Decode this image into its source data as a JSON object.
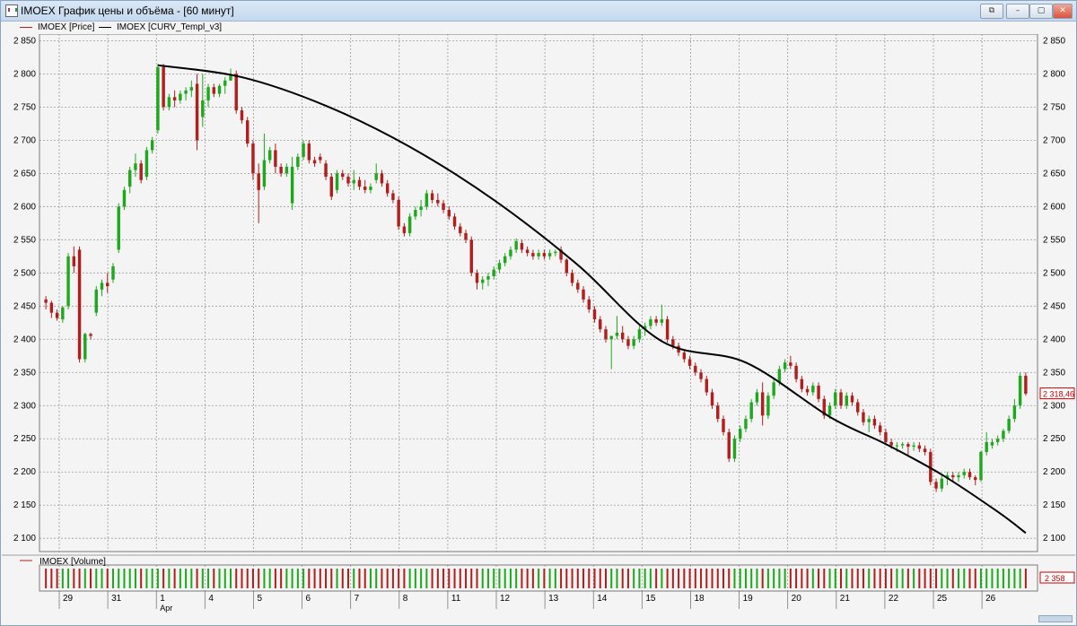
{
  "window": {
    "title": "IMOEX График цены и объёма - [60 минут]",
    "controls": [
      "⧉",
      "–",
      "▢",
      "✕"
    ]
  },
  "legend": {
    "price": "IMOEX [Price]",
    "curve": "IMOEX [CURV_Templ_v3]",
    "volume": "IMOEX [Volume]"
  },
  "colors": {
    "up": "#1ea81e",
    "down": "#b01e1e",
    "curve": "#000000",
    "grid": "#9a9a9a",
    "background": "#f4f4f4"
  },
  "chart_data": [
    {
      "type": "candlestick",
      "title": "IMOEX [Price]",
      "ylim": [
        2080,
        2860
      ],
      "y_ticks": [
        2850,
        2800,
        2750,
        2700,
        2650,
        2600,
        2550,
        2500,
        2450,
        2400,
        2350,
        2300,
        2250,
        2200,
        2150,
        2100
      ],
      "y_tick_labels": [
        "2 850",
        "2 800",
        "2 750",
        "2 700",
        "2 650",
        "2 600",
        "2 550",
        "2 500",
        "2 450",
        "2 400",
        "2 350",
        "2 300",
        "2 250",
        "2 200",
        "2 150",
        "2 100"
      ],
      "last_price_label": "2 318,46",
      "last_price": 2318.46,
      "x_day_labels": [
        "29",
        "31",
        "1",
        "4",
        "5",
        "6",
        "7",
        "8",
        "11",
        "12",
        "13",
        "14",
        "15",
        "18",
        "19",
        "20",
        "21",
        "22",
        "25",
        "26"
      ],
      "x_sub_label": "Apr",
      "candles": [
        [
          2460,
          2465,
          2445,
          2455
        ],
        [
          2455,
          2458,
          2432,
          2440
        ],
        [
          2440,
          2445,
          2428,
          2432
        ],
        [
          2430,
          2450,
          2425,
          2448
        ],
        [
          2450,
          2530,
          2445,
          2525
        ],
        [
          2525,
          2540,
          2500,
          2510
        ],
        [
          2535,
          2540,
          2365,
          2370
        ],
        [
          2370,
          2410,
          2365,
          2408
        ],
        [
          2408,
          2410,
          2400,
          2405
        ],
        [
          2440,
          2480,
          2435,
          2475
        ],
        [
          2475,
          2490,
          2465,
          2485
        ],
        [
          2485,
          2500,
          2470,
          2480
        ],
        [
          2490,
          2515,
          2485,
          2510
        ],
        [
          2535,
          2605,
          2530,
          2600
        ],
        [
          2600,
          2630,
          2595,
          2625
        ],
        [
          2630,
          2660,
          2620,
          2655
        ],
        [
          2655,
          2680,
          2645,
          2665
        ],
        [
          2665,
          2670,
          2635,
          2640
        ],
        [
          2645,
          2690,
          2640,
          2685
        ],
        [
          2685,
          2705,
          2680,
          2700
        ],
        [
          2715,
          2815,
          2710,
          2810
        ],
        [
          2810,
          2815,
          2745,
          2750
        ],
        [
          2750,
          2770,
          2745,
          2765
        ],
        [
          2765,
          2775,
          2750,
          2760
        ],
        [
          2760,
          2775,
          2755,
          2770
        ],
        [
          2770,
          2780,
          2760,
          2775
        ],
        [
          2775,
          2790,
          2765,
          2780
        ],
        [
          2785,
          2800,
          2685,
          2700
        ],
        [
          2735,
          2800,
          2720,
          2760
        ],
        [
          2760,
          2785,
          2750,
          2780
        ],
        [
          2780,
          2785,
          2765,
          2770
        ],
        [
          2770,
          2785,
          2765,
          2782
        ],
        [
          2782,
          2795,
          2770,
          2790
        ],
        [
          2790,
          2808,
          2790,
          2800
        ],
        [
          2800,
          2805,
          2740,
          2745
        ],
        [
          2745,
          2750,
          2725,
          2730
        ],
        [
          2730,
          2735,
          2690,
          2695
        ],
        [
          2695,
          2700,
          2640,
          2650
        ],
        [
          2650,
          2665,
          2575,
          2625
        ],
        [
          2630,
          2710,
          2625,
          2670
        ],
        [
          2670,
          2690,
          2665,
          2685
        ],
        [
          2685,
          2695,
          2650,
          2660
        ],
        [
          2660,
          2665,
          2645,
          2650
        ],
        [
          2650,
          2665,
          2645,
          2660
        ],
        [
          2605,
          2675,
          2595,
          2660
        ],
        [
          2660,
          2680,
          2655,
          2675
        ],
        [
          2675,
          2700,
          2670,
          2695
        ],
        [
          2695,
          2700,
          2665,
          2670
        ],
        [
          2670,
          2675,
          2660,
          2665
        ],
        [
          2675,
          2680,
          2665,
          2670
        ],
        [
          2665,
          2670,
          2640,
          2645
        ],
        [
          2645,
          2650,
          2610,
          2615
        ],
        [
          2625,
          2655,
          2620,
          2650
        ],
        [
          2650,
          2655,
          2640,
          2645
        ],
        [
          2645,
          2650,
          2630,
          2635
        ],
        [
          2635,
          2655,
          2625,
          2640
        ],
        [
          2640,
          2645,
          2625,
          2630
        ],
        [
          2630,
          2640,
          2620,
          2625
        ],
        [
          2625,
          2635,
          2620,
          2630
        ],
        [
          2640,
          2665,
          2635,
          2650
        ],
        [
          2650,
          2655,
          2630,
          2635
        ],
        [
          2635,
          2640,
          2615,
          2620
        ],
        [
          2620,
          2625,
          2605,
          2610
        ],
        [
          2610,
          2615,
          2565,
          2570
        ],
        [
          2570,
          2575,
          2555,
          2560
        ],
        [
          2560,
          2590,
          2555,
          2585
        ],
        [
          2585,
          2600,
          2580,
          2595
        ],
        [
          2595,
          2610,
          2585,
          2600
        ],
        [
          2600,
          2625,
          2595,
          2620
        ],
        [
          2620,
          2625,
          2605,
          2610
        ],
        [
          2610,
          2620,
          2600,
          2605
        ],
        [
          2605,
          2610,
          2590,
          2595
        ],
        [
          2595,
          2600,
          2580,
          2585
        ],
        [
          2585,
          2590,
          2565,
          2570
        ],
        [
          2570,
          2575,
          2555,
          2560
        ],
        [
          2560,
          2565,
          2545,
          2550
        ],
        [
          2550,
          2555,
          2495,
          2500
        ],
        [
          2500,
          2505,
          2475,
          2485
        ],
        [
          2485,
          2495,
          2475,
          2490
        ],
        [
          2490,
          2500,
          2480,
          2495
        ],
        [
          2495,
          2510,
          2490,
          2505
        ],
        [
          2505,
          2520,
          2500,
          2515
        ],
        [
          2515,
          2530,
          2510,
          2525
        ],
        [
          2525,
          2540,
          2520,
          2535
        ],
        [
          2535,
          2552,
          2530,
          2548
        ],
        [
          2545,
          2550,
          2530,
          2535
        ],
        [
          2535,
          2540,
          2525,
          2530
        ],
        [
          2530,
          2535,
          2520,
          2525
        ],
        [
          2525,
          2535,
          2520,
          2530
        ],
        [
          2530,
          2535,
          2520,
          2525
        ],
        [
          2525,
          2535,
          2520,
          2530
        ],
        [
          2530,
          2535,
          2525,
          2532
        ],
        [
          2535,
          2540,
          2515,
          2520
        ],
        [
          2520,
          2522,
          2495,
          2500
        ],
        [
          2500,
          2505,
          2480,
          2485
        ],
        [
          2485,
          2490,
          2470,
          2475
        ],
        [
          2475,
          2480,
          2455,
          2460
        ],
        [
          2460,
          2465,
          2440,
          2445
        ],
        [
          2445,
          2450,
          2425,
          2430
        ],
        [
          2430,
          2435,
          2410,
          2415
        ],
        [
          2415,
          2420,
          2395,
          2400
        ],
        [
          2400,
          2405,
          2355,
          2405
        ],
        [
          2405,
          2435,
          2400,
          2410
        ],
        [
          2410,
          2420,
          2395,
          2400
        ],
        [
          2400,
          2405,
          2385,
          2390
        ],
        [
          2390,
          2405,
          2385,
          2400
        ],
        [
          2400,
          2420,
          2395,
          2415
        ],
        [
          2415,
          2425,
          2405,
          2420
        ],
        [
          2420,
          2435,
          2415,
          2430
        ],
        [
          2430,
          2435,
          2420,
          2425
        ],
        [
          2425,
          2452,
          2420,
          2430
        ],
        [
          2430,
          2435,
          2395,
          2400
        ],
        [
          2400,
          2405,
          2385,
          2390
        ],
        [
          2390,
          2395,
          2375,
          2380
        ],
        [
          2380,
          2385,
          2365,
          2370
        ],
        [
          2370,
          2375,
          2355,
          2360
        ],
        [
          2360,
          2365,
          2345,
          2350
        ],
        [
          2350,
          2355,
          2335,
          2340
        ],
        [
          2340,
          2345,
          2315,
          2320
        ],
        [
          2320,
          2325,
          2295,
          2300
        ],
        [
          2300,
          2305,
          2275,
          2280
        ],
        [
          2280,
          2285,
          2255,
          2260
        ],
        [
          2260,
          2265,
          2215,
          2220
        ],
        [
          2220,
          2255,
          2215,
          2250
        ],
        [
          2250,
          2270,
          2245,
          2265
        ],
        [
          2265,
          2285,
          2260,
          2280
        ],
        [
          2280,
          2310,
          2275,
          2305
        ],
        [
          2305,
          2325,
          2300,
          2320
        ],
        [
          2320,
          2335,
          2270,
          2285
        ],
        [
          2285,
          2320,
          2280,
          2315
        ],
        [
          2315,
          2340,
          2310,
          2335
        ],
        [
          2335,
          2360,
          2330,
          2355
        ],
        [
          2355,
          2370,
          2350,
          2365
        ],
        [
          2365,
          2375,
          2355,
          2360
        ],
        [
          2360,
          2365,
          2335,
          2340
        ],
        [
          2340,
          2345,
          2320,
          2325
        ],
        [
          2325,
          2330,
          2315,
          2320
        ],
        [
          2320,
          2335,
          2315,
          2330
        ],
        [
          2330,
          2335,
          2305,
          2310
        ],
        [
          2310,
          2315,
          2280,
          2285
        ],
        [
          2285,
          2305,
          2280,
          2300
        ],
        [
          2300,
          2325,
          2295,
          2320
        ],
        [
          2320,
          2325,
          2295,
          2300
        ],
        [
          2300,
          2320,
          2295,
          2315
        ],
        [
          2315,
          2320,
          2300,
          2305
        ],
        [
          2305,
          2310,
          2285,
          2290
        ],
        [
          2290,
          2295,
          2270,
          2275
        ],
        [
          2275,
          2285,
          2260,
          2280
        ],
        [
          2280,
          2285,
          2265,
          2270
        ],
        [
          2270,
          2275,
          2255,
          2260
        ],
        [
          2260,
          2265,
          2240,
          2245
        ],
        [
          2245,
          2250,
          2235,
          2240
        ],
        [
          2240,
          2245,
          2230,
          2240
        ],
        [
          2240,
          2245,
          2235,
          2242
        ],
        [
          2242,
          2245,
          2225,
          2238
        ],
        [
          2238,
          2245,
          2232,
          2240
        ],
        [
          2240,
          2245,
          2230,
          2235
        ],
        [
          2235,
          2240,
          2225,
          2230
        ],
        [
          2230,
          2235,
          2180,
          2185
        ],
        [
          2185,
          2190,
          2170,
          2175
        ],
        [
          2175,
          2195,
          2170,
          2190
        ],
        [
          2190,
          2200,
          2180,
          2195
        ],
        [
          2195,
          2200,
          2185,
          2192
        ],
        [
          2192,
          2200,
          2185,
          2195
        ],
        [
          2195,
          2205,
          2190,
          2200
        ],
        [
          2200,
          2205,
          2188,
          2192
        ],
        [
          2192,
          2195,
          2180,
          2188
        ],
        [
          2188,
          2232,
          2185,
          2230
        ],
        [
          2230,
          2260,
          2225,
          2245
        ],
        [
          2240,
          2250,
          2235,
          2245
        ],
        [
          2245,
          2255,
          2240,
          2250
        ],
        [
          2250,
          2265,
          2245,
          2262
        ],
        [
          2262,
          2285,
          2258,
          2280
        ],
        [
          2280,
          2310,
          2275,
          2300
        ],
        [
          2300,
          2350,
          2295,
          2345
        ],
        [
          2345,
          2350,
          2315,
          2318
        ]
      ]
    },
    {
      "type": "line",
      "title": "IMOEX [CURV_Templ_v3]",
      "x_index": [
        20,
        35,
        50,
        65,
        80,
        95,
        110,
        125,
        140,
        150,
        160,
        170,
        175
      ],
      "y": [
        2813,
        2795,
        2752,
        2690,
        2610,
        2512,
        2397,
        2365,
        2283,
        2242,
        2196,
        2140,
        2108
      ]
    },
    {
      "type": "bar",
      "title": "IMOEX [Volume]",
      "last_value_label": "2 358",
      "bars_count": 176
    }
  ]
}
